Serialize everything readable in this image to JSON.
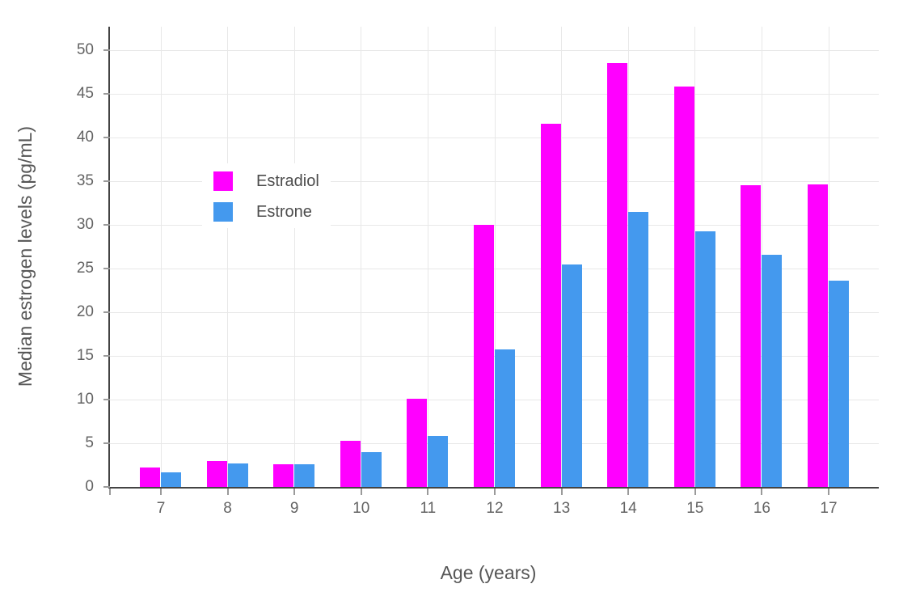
{
  "chart_data": {
    "type": "bar",
    "title": "",
    "xlabel": "Age (years)",
    "ylabel": "Median estrogen levels (pg/mL)",
    "categories": [
      "7",
      "8",
      "9",
      "10",
      "11",
      "12",
      "13",
      "14",
      "15",
      "16",
      "17"
    ],
    "series": [
      {
        "name": "Estradiol",
        "color": "#FF00FF",
        "values": [
          2.2,
          3.0,
          2.6,
          5.3,
          10.1,
          30.0,
          41.6,
          48.5,
          45.8,
          34.5,
          34.6
        ]
      },
      {
        "name": "Estrone",
        "color": "#4499EE",
        "values": [
          1.7,
          2.7,
          2.6,
          4.0,
          5.8,
          15.7,
          25.5,
          31.5,
          29.3,
          26.6,
          23.6
        ]
      }
    ],
    "yticks": [
      0,
      5,
      10,
      15,
      20,
      25,
      30,
      35,
      40,
      45,
      50
    ],
    "ylim": [
      0,
      52.7
    ],
    "grid": true,
    "legend_position": "inside-upper-left",
    "colors": {
      "axis_line": "#444444",
      "grid": "#e8e8e8",
      "tick_text": "#636363",
      "title_text": "#565656",
      "background": "#ffffff"
    }
  }
}
